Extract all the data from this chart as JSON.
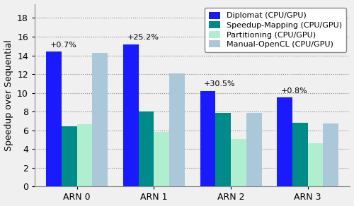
{
  "categories": [
    "ARN 0",
    "ARN 1",
    "ARN 2",
    "ARN 3"
  ],
  "series": {
    "Diplomat (CPU/GPU)": [
      14.4,
      15.2,
      10.2,
      9.5
    ],
    "Speedup-Mapping (CPU/GPU)": [
      6.4,
      8.0,
      7.9,
      6.8
    ],
    "Partitioning (CPU/GPU)": [
      6.65,
      5.8,
      5.05,
      4.6
    ],
    "Manual-OpenCL (CPU/GPU)": [
      14.3,
      12.1,
      7.85,
      6.7
    ]
  },
  "colors": {
    "Diplomat (CPU/GPU)": "#1a1aff",
    "Speedup-Mapping (CPU/GPU)": "#008b8b",
    "Partitioning (CPU/GPU)": "#b0eed0",
    "Manual-OpenCL (CPU/GPU)": "#aac8d8"
  },
  "annotations": [
    {
      "group": 0,
      "text": "+0.7%",
      "y": 14.9
    },
    {
      "group": 1,
      "text": "+25.2%",
      "y": 15.7
    },
    {
      "group": 2,
      "text": "+30.5%",
      "y": 10.7
    },
    {
      "group": 3,
      "text": "+0.8%",
      "y": 10.0
    }
  ],
  "ylabel": "Speedup over Sequential",
  "ylim": [
    0,
    19.5
  ],
  "yticks": [
    0,
    2,
    4,
    6,
    8,
    10,
    12,
    14,
    16,
    18
  ],
  "background_color": "#f0f0f0",
  "plot_bg_color": "#f0f0f0",
  "grid_color": "#888888",
  "bar_width": 0.2,
  "group_width": 1.0,
  "legend_fontsize": 8,
  "tick_fontsize": 9,
  "ylabel_fontsize": 9,
  "annot_fontsize": 8
}
